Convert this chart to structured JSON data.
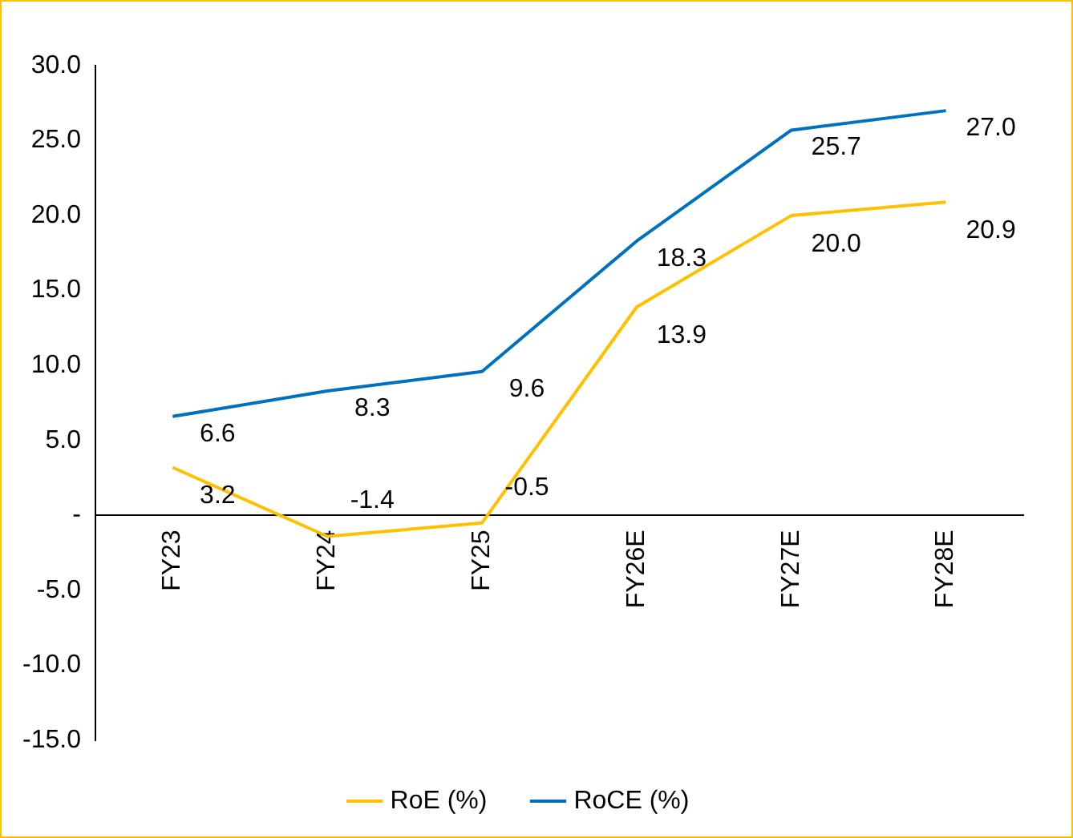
{
  "chart_data": {
    "type": "line",
    "categories": [
      "FY23",
      "FY24",
      "FY25",
      "FY26E",
      "FY27E",
      "FY28E"
    ],
    "series": [
      {
        "name": "RoE (%)",
        "color": "#ffc000",
        "values": [
          3.2,
          -1.4,
          -0.5,
          13.9,
          20.0,
          20.9
        ],
        "value_labels": [
          "3.2",
          "-1.4",
          "-0.5",
          "13.9",
          "20.0",
          "20.9"
        ]
      },
      {
        "name": "RoCE (%)",
        "color": "#0070c0",
        "values": [
          6.6,
          8.3,
          9.6,
          18.3,
          25.7,
          27.0
        ],
        "value_labels": [
          "6.6",
          "8.3",
          "9.6",
          "18.3",
          "25.7",
          "27.0"
        ]
      }
    ],
    "ylim": [
      -15,
      30
    ],
    "yticks": [
      {
        "value": -15,
        "label": "-15.0"
      },
      {
        "value": -10,
        "label": "-10.0"
      },
      {
        "value": -5,
        "label": "-5.0"
      },
      {
        "value": 0,
        "label": "-"
      },
      {
        "value": 5,
        "label": "5.0"
      },
      {
        "value": 10,
        "label": "10.0"
      },
      {
        "value": 15,
        "label": "15.0"
      },
      {
        "value": 20,
        "label": "20.0"
      },
      {
        "value": 25,
        "label": "25.0"
      },
      {
        "value": 30,
        "label": "30.0"
      }
    ],
    "grid": false,
    "legend": "bottom",
    "marker": "none",
    "line_style": "solid"
  }
}
